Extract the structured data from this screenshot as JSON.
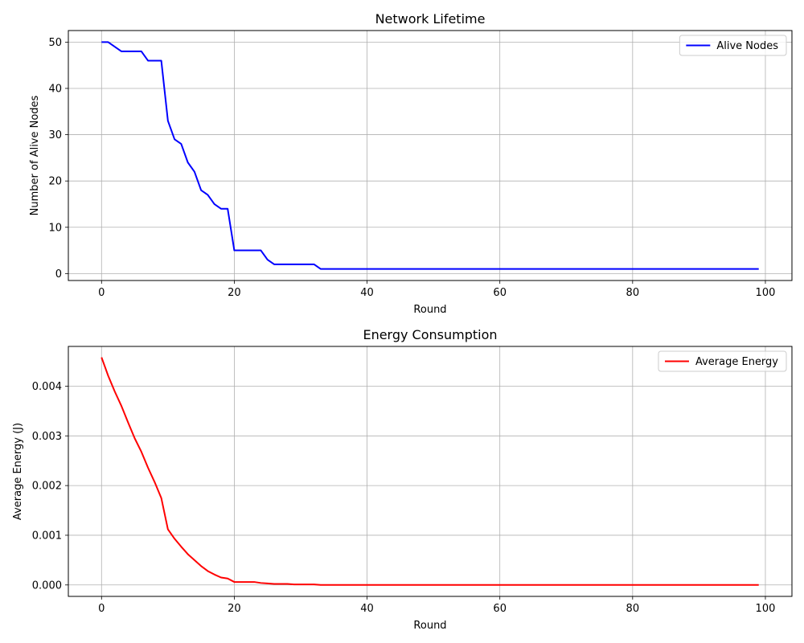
{
  "chart_data": [
    {
      "type": "line",
      "title": "Network Lifetime",
      "xlabel": "Round",
      "ylabel": "Number of Alive Nodes",
      "xlim": [
        -5,
        104
      ],
      "ylim": [
        -1.5,
        52.5
      ],
      "xticks": [
        0,
        20,
        40,
        60,
        80,
        100
      ],
      "xtick_labels": [
        "0",
        "20",
        "40",
        "60",
        "80",
        "100"
      ],
      "yticks": [
        0,
        10,
        20,
        30,
        40,
        50
      ],
      "ytick_labels": [
        "0",
        "10",
        "20",
        "30",
        "40",
        "50"
      ],
      "grid": true,
      "legend_position": "top-right",
      "series": [
        {
          "name": "Alive Nodes",
          "color": "#0000ff",
          "x": [
            0,
            1,
            2,
            3,
            4,
            5,
            6,
            7,
            8,
            9,
            10,
            11,
            12,
            13,
            14,
            15,
            16,
            17,
            18,
            19,
            20,
            21,
            22,
            23,
            24,
            25,
            26,
            27,
            28,
            29,
            30,
            31,
            32,
            33,
            34,
            35,
            36,
            37,
            38,
            39,
            40,
            41,
            42,
            43,
            44,
            45,
            46,
            47,
            48,
            49,
            50,
            51,
            52,
            53,
            54,
            55,
            56,
            57,
            58,
            59,
            60,
            61,
            62,
            63,
            64,
            65,
            66,
            67,
            68,
            69,
            70,
            71,
            72,
            73,
            74,
            75,
            76,
            77,
            78,
            79,
            80,
            81,
            82,
            83,
            84,
            85,
            86,
            87,
            88,
            89,
            90,
            91,
            92,
            93,
            94,
            95,
            96,
            97,
            98,
            99
          ],
          "y": [
            50,
            50,
            49,
            48,
            48,
            48,
            48,
            46,
            46,
            46,
            33,
            29,
            28,
            24,
            22,
            18,
            17,
            15,
            14,
            14,
            5,
            5,
            5,
            5,
            5,
            3,
            2,
            2,
            2,
            2,
            2,
            2,
            2,
            1,
            1,
            1,
            1,
            1,
            1,
            1,
            1,
            1,
            1,
            1,
            1,
            1,
            1,
            1,
            1,
            1,
            1,
            1,
            1,
            1,
            1,
            1,
            1,
            1,
            1,
            1,
            1,
            1,
            1,
            1,
            1,
            1,
            1,
            1,
            1,
            1,
            1,
            1,
            1,
            1,
            1,
            1,
            1,
            1,
            1,
            1,
            1,
            1,
            1,
            1,
            1,
            1,
            1,
            1,
            1,
            1,
            1,
            1,
            1,
            1,
            1,
            1,
            1,
            1,
            1,
            1
          ]
        }
      ]
    },
    {
      "type": "line",
      "title": "Energy Consumption",
      "xlabel": "Round",
      "ylabel": "Average Energy (J)",
      "xlim": [
        -5,
        104
      ],
      "ylim": [
        -0.00023,
        0.0048
      ],
      "xticks": [
        0,
        20,
        40,
        60,
        80,
        100
      ],
      "xtick_labels": [
        "0",
        "20",
        "40",
        "60",
        "80",
        "100"
      ],
      "yticks": [
        0,
        0.001,
        0.002,
        0.003,
        0.004
      ],
      "ytick_labels": [
        "0.000",
        "0.001",
        "0.002",
        "0.003",
        "0.004"
      ],
      "grid": true,
      "legend_position": "top-right",
      "series": [
        {
          "name": "Average Energy",
          "color": "#ff0000",
          "x": [
            0,
            1,
            2,
            3,
            4,
            5,
            6,
            7,
            8,
            9,
            10,
            11,
            12,
            13,
            14,
            15,
            16,
            17,
            18,
            19,
            20,
            21,
            22,
            23,
            24,
            25,
            26,
            27,
            28,
            29,
            30,
            31,
            32,
            33,
            34,
            35,
            36,
            37,
            38,
            39,
            40,
            41,
            42,
            43,
            44,
            45,
            46,
            47,
            48,
            49,
            50,
            51,
            52,
            53,
            54,
            55,
            56,
            57,
            58,
            59,
            60,
            61,
            62,
            63,
            64,
            65,
            66,
            67,
            68,
            69,
            70,
            71,
            72,
            73,
            74,
            75,
            76,
            77,
            78,
            79,
            80,
            81,
            82,
            83,
            84,
            85,
            86,
            87,
            88,
            89,
            90,
            91,
            92,
            93,
            94,
            95,
            96,
            97,
            98,
            99
          ],
          "y": [
            0.00458,
            0.00421,
            0.00389,
            0.0036,
            0.00327,
            0.00295,
            0.00268,
            0.00236,
            0.00207,
            0.00175,
            0.00112,
            0.00093,
            0.00077,
            0.00062,
            0.0005,
            0.00038,
            0.00028,
            0.00021,
            0.00015,
            0.00013,
            6e-05,
            6e-05,
            6e-05,
            6e-05,
            4e-05,
            3e-05,
            2e-05,
            2e-05,
            2e-05,
            1e-05,
            1e-05,
            1e-05,
            1e-05,
            0,
            0,
            0,
            0,
            0,
            0,
            0,
            0,
            0,
            0,
            0,
            0,
            0,
            0,
            0,
            0,
            0,
            0,
            0,
            0,
            0,
            0,
            0,
            0,
            0,
            0,
            0,
            0,
            0,
            0,
            0,
            0,
            0,
            0,
            0,
            0,
            0,
            0,
            0,
            0,
            0,
            0,
            0,
            0,
            0,
            0,
            0,
            0,
            0,
            0,
            0,
            0,
            0,
            0,
            0,
            0,
            0,
            0,
            0,
            0,
            0,
            0,
            0,
            0,
            0,
            0,
            0
          ]
        }
      ]
    }
  ]
}
